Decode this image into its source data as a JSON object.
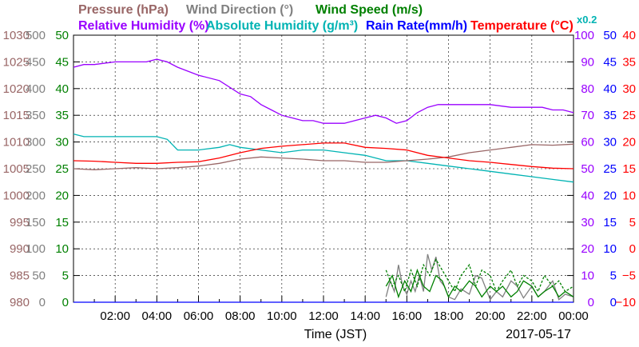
{
  "chart_data": {
    "type": "line",
    "xlabel": "Time (JST)",
    "date": "2017-05-17",
    "x_ticks": [
      "02:00",
      "04:00",
      "06:00",
      "08:00",
      "10:00",
      "12:00",
      "14:00",
      "16:00",
      "18:00",
      "20:00",
      "22:00",
      "00:00"
    ],
    "x_range_hours": [
      0,
      24
    ],
    "grid": true,
    "legend": [
      {
        "label": "Pressure (hPa)",
        "color": "#996666"
      },
      {
        "label": "Wind Direction (°)",
        "color": "#808080"
      },
      {
        "label": "Wind Speed (m/s)",
        "color": "#008000"
      },
      {
        "label": "Relative Humidity (%)",
        "color": "#9900ff"
      },
      {
        "label": "Absolute Humidity (g/m³)",
        "color": "#00b3b3"
      },
      {
        "label": "Rain Rate(mm/h)",
        "color": "#0000ff"
      },
      {
        "label": "Temperature (°C)",
        "color": "#ff0000"
      },
      {
        "label": "x0.2",
        "color": "#00b3b3"
      }
    ],
    "axes": [
      {
        "name": "Pressure",
        "color": "#996666",
        "range": [
          980,
          1030
        ],
        "ticks": [
          "980",
          "985",
          "990",
          "995",
          "1000",
          "1005",
          "1010",
          "1015",
          "1020",
          "1025",
          "1030"
        ]
      },
      {
        "name": "Wind Direction",
        "color": "#808080",
        "range": [
          0,
          500
        ],
        "ticks": [
          "0",
          "50",
          "100",
          "150",
          "200",
          "250",
          "300",
          "350",
          "400",
          "450",
          "500"
        ]
      },
      {
        "name": "Wind Speed",
        "color": "#008000",
        "range": [
          0,
          50
        ],
        "ticks": [
          "0",
          "5",
          "10",
          "15",
          "20",
          "25",
          "30",
          "35",
          "40",
          "45",
          "50"
        ]
      },
      {
        "name": "Relative Humidity",
        "color": "#9900ff",
        "range": [
          0,
          100
        ],
        "ticks": [
          "0",
          "10",
          "20",
          "30",
          "40",
          "50",
          "60",
          "70",
          "80",
          "90",
          "100"
        ]
      },
      {
        "name": "Rain Rate",
        "color": "#0000ff",
        "range": [
          0,
          50
        ],
        "ticks": [
          "0",
          "5",
          "10",
          "15",
          "20",
          "25",
          "30",
          "35",
          "40",
          "45",
          "50"
        ]
      },
      {
        "name": "Temperature",
        "color": "#ff0000",
        "range": [
          -10,
          40
        ],
        "ticks": [
          "−10",
          "−5",
          "0",
          "5",
          "10",
          "15",
          "20",
          "25",
          "30",
          "35",
          "40"
        ]
      }
    ],
    "series": [
      {
        "name": "Relative Humidity",
        "color": "#9900ff",
        "axis": 3,
        "x": [
          0,
          0.5,
          1,
          2,
          3,
          3.5,
          4,
          4.5,
          5,
          6,
          7,
          8,
          8.5,
          9,
          9.5,
          10,
          10.5,
          11,
          11.5,
          12,
          12.5,
          13,
          13.5,
          14,
          14.5,
          15,
          15.5,
          16,
          16.5,
          17,
          17.5,
          18,
          18.5,
          19,
          20,
          21,
          22,
          22.5,
          23,
          23.5,
          24
        ],
        "y": [
          88,
          89,
          89,
          90,
          90,
          90,
          91,
          90,
          88,
          85,
          83,
          78,
          77,
          74,
          72,
          70,
          69,
          68,
          68,
          67,
          67,
          67,
          68,
          69,
          70,
          69,
          67,
          68,
          71,
          73,
          74,
          74,
          74,
          74,
          74,
          73,
          73,
          73,
          72,
          72,
          71
        ]
      },
      {
        "name": "Absolute Humidity",
        "color": "#00b3b3",
        "axis": 3,
        "x": [
          0,
          0.5,
          1,
          2,
          3,
          4,
          4.5,
          5,
          6,
          7,
          7.5,
          8,
          9,
          10,
          11,
          12,
          13,
          14,
          15,
          16,
          17,
          18,
          19,
          20,
          21,
          22,
          23,
          24
        ],
        "y": [
          63,
          62,
          62,
          62,
          62,
          62,
          61,
          57,
          57,
          58,
          59,
          58,
          57,
          56,
          57,
          57,
          56,
          55,
          53,
          53,
          52,
          51,
          50,
          49,
          48,
          47,
          46,
          45
        ]
      },
      {
        "name": "Pressure",
        "color": "#996666",
        "axis": 0,
        "x": [
          0,
          1,
          2,
          3,
          4,
          5,
          6,
          7,
          8,
          9,
          10,
          11,
          12,
          13,
          14,
          15,
          16,
          17,
          18,
          19,
          20,
          21,
          22,
          23,
          24
        ],
        "y": [
          1005.0,
          1004.8,
          1005.0,
          1005.2,
          1005.0,
          1005.2,
          1005.5,
          1006.0,
          1006.8,
          1007.2,
          1007.0,
          1006.8,
          1006.5,
          1006.5,
          1006.2,
          1006.2,
          1006.5,
          1006.8,
          1007.2,
          1008.0,
          1008.5,
          1009.0,
          1009.5,
          1009.4,
          1009.6
        ]
      },
      {
        "name": "Temperature",
        "color": "#ff0000",
        "axis": 5,
        "x": [
          0,
          1,
          2,
          3,
          4,
          5,
          6,
          7,
          8,
          9,
          10,
          11,
          12,
          13,
          14,
          15,
          16,
          17,
          18,
          19,
          20,
          21,
          22,
          23,
          24
        ],
        "y": [
          16.5,
          16.4,
          16.2,
          16.0,
          16.0,
          16.2,
          16.3,
          17.0,
          18.0,
          18.8,
          19.2,
          19.5,
          19.8,
          19.8,
          19.0,
          18.8,
          18.5,
          17.5,
          17.0,
          16.5,
          16.2,
          15.8,
          15.4,
          15.1,
          15.0
        ]
      },
      {
        "name": "Wind Direction",
        "color": "#808080",
        "axis": 1,
        "x": [
          15.0,
          15.2,
          15.4,
          15.6,
          15.8,
          16.0,
          16.2,
          16.4,
          16.6,
          16.8,
          17.0,
          17.2,
          17.4,
          17.6,
          17.8,
          18.0,
          18.3,
          18.6,
          19.0,
          19.3,
          19.6,
          20.0,
          20.3,
          20.6,
          21.0,
          21.3,
          21.6,
          22.0,
          22.3,
          22.6,
          23.0,
          23.3,
          23.6,
          24.0
        ],
        "y": [
          10,
          40,
          20,
          70,
          30,
          15,
          40,
          20,
          50,
          20,
          90,
          60,
          85,
          40,
          30,
          10,
          5,
          25,
          15,
          50,
          45,
          5,
          20,
          10,
          40,
          30,
          8,
          30,
          10,
          20,
          40,
          5,
          15,
          10
        ]
      },
      {
        "name": "Wind Speed",
        "color": "#008000",
        "axis": 2,
        "x": [
          15.0,
          15.3,
          15.6,
          15.9,
          16.2,
          16.5,
          16.8,
          17.1,
          17.4,
          17.7,
          18.0,
          18.3,
          18.6,
          19.0,
          19.3,
          19.6,
          20.0,
          20.3,
          20.6,
          21.0,
          21.3,
          21.6,
          22.0,
          22.3,
          22.6,
          23.0,
          23.3,
          23.6,
          24.0
        ],
        "y": [
          3,
          5,
          1,
          4,
          2,
          6,
          3,
          2,
          5,
          4,
          1,
          3,
          2,
          4,
          3,
          1,
          3,
          2,
          3,
          1,
          2,
          4,
          3,
          1,
          2,
          3,
          1,
          2,
          1
        ]
      },
      {
        "name": "Wind Speed (gust)",
        "color": "#008000",
        "axis": 2,
        "dashed": true,
        "x": [
          15.0,
          15.3,
          15.6,
          15.9,
          16.2,
          16.5,
          16.8,
          17.1,
          17.4,
          17.7,
          18.0,
          18.3,
          18.6,
          19.0,
          19.3,
          19.6,
          20.0,
          20.3,
          20.6,
          21.0,
          21.3,
          21.6,
          22.0,
          22.3,
          22.6,
          23.0,
          23.3,
          23.6,
          24.0
        ],
        "y": [
          6,
          3,
          5,
          2,
          6,
          3,
          7,
          5,
          8,
          6,
          4,
          2,
          5,
          7,
          3,
          6,
          5,
          2,
          4,
          6,
          3,
          5,
          4,
          2,
          5,
          3,
          4,
          2,
          3
        ]
      },
      {
        "name": "Rain Rate",
        "color": "#0000ff",
        "axis": 4,
        "x": [
          0,
          24
        ],
        "y": [
          0,
          0
        ]
      }
    ]
  }
}
